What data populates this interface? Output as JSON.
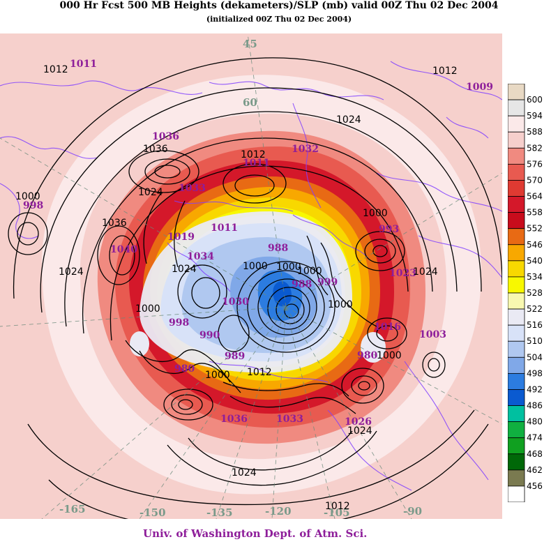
{
  "title": "000 Hr Fcst 500 MB Heights (dekameters)/SLP (mb) valid 00Z Thu 02 Dec 2004",
  "subtitle": "(initialized 00Z  Thu 02 Dec 2004)",
  "credit": "Univ. of Washington Dept. of Atm. Sci.",
  "colors": {
    "contour": "#000000",
    "slp_label": "#8e1e9a",
    "coastline": "#8040ff",
    "longitude_label": "#7a9a8a"
  },
  "legend": {
    "levels": [
      {
        "label": "600",
        "color": "#e8d9c4"
      },
      {
        "label": "594",
        "color": "#e6e6e6"
      },
      {
        "label": "588",
        "color": "#fbe9e9"
      },
      {
        "label": "582",
        "color": "#f6cfcc"
      },
      {
        "label": "576",
        "color": "#f08a80"
      },
      {
        "label": "570",
        "color": "#e85a50"
      },
      {
        "label": "564",
        "color": "#df3a32"
      },
      {
        "label": "558",
        "color": "#d4182a"
      },
      {
        "label": "552",
        "color": "#c80c1c"
      },
      {
        "label": "546",
        "color": "#e86a14"
      },
      {
        "label": "540",
        "color": "#f8a800"
      },
      {
        "label": "534",
        "color": "#f8d800"
      },
      {
        "label": "528",
        "color": "#f8f800"
      },
      {
        "label": "522",
        "color": "#f8f8b0"
      },
      {
        "label": "516",
        "color": "#eaeaf4"
      },
      {
        "label": "510",
        "color": "#d8e2f8"
      },
      {
        "label": "504",
        "color": "#b0c8f0"
      },
      {
        "label": "498",
        "color": "#80a8e8"
      },
      {
        "label": "492",
        "color": "#2c7ce0"
      },
      {
        "label": "486",
        "color": "#0a5ad0"
      },
      {
        "label": "480",
        "color": "#00c0a0"
      },
      {
        "label": "474",
        "color": "#10b040"
      },
      {
        "label": "468",
        "color": "#10a020"
      },
      {
        "label": "462",
        "color": "#006808"
      },
      {
        "label": "456",
        "color": "#7a7a50"
      },
      {
        "label": "",
        "color": "#ffffff"
      }
    ]
  },
  "isobar_labels": [
    {
      "text": "1012",
      "kind": "contour"
    },
    {
      "text": "1011",
      "kind": "slp"
    },
    {
      "text": "1012",
      "kind": "contour"
    },
    {
      "text": "1009",
      "kind": "slp"
    },
    {
      "text": "1024",
      "kind": "contour"
    },
    {
      "text": "1036",
      "kind": "contour"
    },
    {
      "text": "1036",
      "kind": "slp"
    },
    {
      "text": "1012",
      "kind": "contour"
    },
    {
      "text": "1011",
      "kind": "slp"
    },
    {
      "text": "1032",
      "kind": "slp"
    },
    {
      "text": "1024",
      "kind": "contour"
    },
    {
      "text": "1033",
      "kind": "slp"
    },
    {
      "text": "1000",
      "kind": "contour"
    },
    {
      "text": "998",
      "kind": "slp"
    },
    {
      "text": "1036",
      "kind": "contour"
    },
    {
      "text": "1040",
      "kind": "slp"
    },
    {
      "text": "1019",
      "kind": "slp"
    },
    {
      "text": "1011",
      "kind": "slp"
    },
    {
      "text": "1034",
      "kind": "slp"
    },
    {
      "text": "1024",
      "kind": "contour"
    },
    {
      "text": "1024",
      "kind": "contour"
    },
    {
      "text": "1000",
      "kind": "contour"
    },
    {
      "text": "998",
      "kind": "slp"
    },
    {
      "text": "1000",
      "kind": "contour"
    },
    {
      "text": "1000",
      "kind": "contour"
    },
    {
      "text": "1030",
      "kind": "slp"
    },
    {
      "text": "1000",
      "kind": "contour"
    },
    {
      "text": "988",
      "kind": "slp"
    },
    {
      "text": "1000",
      "kind": "contour"
    },
    {
      "text": "999",
      "kind": "slp"
    },
    {
      "text": "988",
      "kind": "slp"
    },
    {
      "text": "1023",
      "kind": "slp"
    },
    {
      "text": "1024",
      "kind": "contour"
    },
    {
      "text": "1000",
      "kind": "contour"
    },
    {
      "text": "1016",
      "kind": "slp"
    },
    {
      "text": "1003",
      "kind": "slp"
    },
    {
      "text": "993",
      "kind": "slp"
    },
    {
      "text": "990",
      "kind": "slp"
    },
    {
      "text": "989",
      "kind": "slp"
    },
    {
      "text": "980",
      "kind": "slp"
    },
    {
      "text": "1012",
      "kind": "contour"
    },
    {
      "text": "980",
      "kind": "slp"
    },
    {
      "text": "1000",
      "kind": "contour"
    },
    {
      "text": "1036",
      "kind": "slp"
    },
    {
      "text": "1033",
      "kind": "slp"
    },
    {
      "text": "1026",
      "kind": "slp"
    },
    {
      "text": "1024",
      "kind": "contour"
    },
    {
      "text": "1024",
      "kind": "contour"
    },
    {
      "text": "1012",
      "kind": "contour"
    },
    {
      "text": "1000",
      "kind": "contour"
    }
  ],
  "longitude_labels": [
    "45",
    "60",
    "-165",
    "-150",
    "-135",
    "-120",
    "-105",
    "-90"
  ]
}
